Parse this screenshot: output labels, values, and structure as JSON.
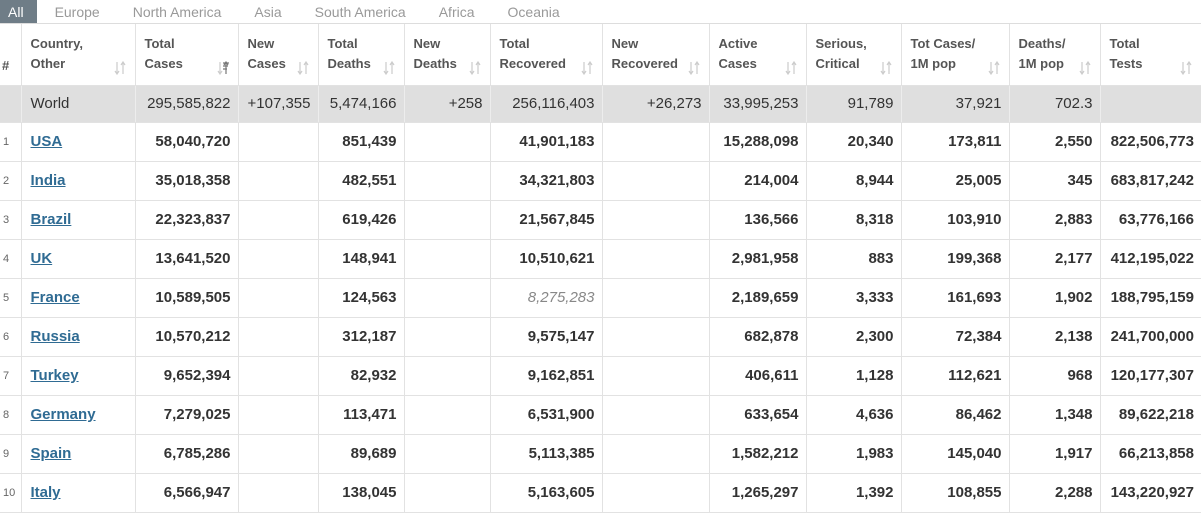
{
  "tabs": [
    "All",
    "Europe",
    "North America",
    "Asia",
    "South America",
    "Africa",
    "Oceania"
  ],
  "active_tab": 0,
  "headers": [
    [
      "#"
    ],
    [
      "Country,",
      "Other"
    ],
    [
      "Total",
      "Cases"
    ],
    [
      "New",
      "Cases"
    ],
    [
      "Total",
      "Deaths"
    ],
    [
      "New",
      "Deaths"
    ],
    [
      "Total",
      "Recovered"
    ],
    [
      "New",
      "Recovered"
    ],
    [
      "Active",
      "Cases"
    ],
    [
      "Serious,",
      "Critical"
    ],
    [
      "Tot Cases/",
      "1M pop"
    ],
    [
      "Deaths/",
      "1M pop"
    ],
    [
      "Total",
      "Tests"
    ]
  ],
  "sorted_column": 2,
  "world": {
    "name": "World",
    "cells": [
      "295,585,822",
      "+107,355",
      "5,474,166",
      "+258",
      "256,116,403",
      "+26,273",
      "33,995,253",
      "91,789",
      "37,921",
      "702.3",
      ""
    ]
  },
  "rows": [
    {
      "num": "1",
      "country": "USA",
      "cells": [
        "58,040,720",
        "",
        "851,439",
        "",
        "41,901,183",
        "",
        "15,288,098",
        "20,340",
        "173,811",
        "2,550",
        "822,506,773"
      ]
    },
    {
      "num": "2",
      "country": "India",
      "cells": [
        "35,018,358",
        "",
        "482,551",
        "",
        "34,321,803",
        "",
        "214,004",
        "8,944",
        "25,005",
        "345",
        "683,817,242"
      ]
    },
    {
      "num": "3",
      "country": "Brazil",
      "cells": [
        "22,323,837",
        "",
        "619,426",
        "",
        "21,567,845",
        "",
        "136,566",
        "8,318",
        "103,910",
        "2,883",
        "63,776,166"
      ]
    },
    {
      "num": "4",
      "country": "UK",
      "cells": [
        "13,641,520",
        "",
        "148,941",
        "",
        "10,510,621",
        "",
        "2,981,958",
        "883",
        "199,368",
        "2,177",
        "412,195,022"
      ]
    },
    {
      "num": "5",
      "country": "France",
      "cells": [
        "10,589,505",
        "",
        "124,563",
        "",
        "8,275,283",
        "",
        "2,189,659",
        "3,333",
        "161,693",
        "1,902",
        "188,795,159"
      ],
      "italic_cells": [
        4
      ]
    },
    {
      "num": "6",
      "country": "Russia",
      "cells": [
        "10,570,212",
        "",
        "312,187",
        "",
        "9,575,147",
        "",
        "682,878",
        "2,300",
        "72,384",
        "2,138",
        "241,700,000"
      ]
    },
    {
      "num": "7",
      "country": "Turkey",
      "cells": [
        "9,652,394",
        "",
        "82,932",
        "",
        "9,162,851",
        "",
        "406,611",
        "1,128",
        "112,621",
        "968",
        "120,177,307"
      ]
    },
    {
      "num": "8",
      "country": "Germany",
      "cells": [
        "7,279,025",
        "",
        "113,471",
        "",
        "6,531,900",
        "",
        "633,654",
        "4,636",
        "86,462",
        "1,348",
        "89,622,218"
      ]
    },
    {
      "num": "9",
      "country": "Spain",
      "cells": [
        "6,785,286",
        "",
        "89,689",
        "",
        "5,113,385",
        "",
        "1,582,212",
        "1,983",
        "145,040",
        "1,917",
        "66,213,858"
      ]
    },
    {
      "num": "10",
      "country": "Italy",
      "cells": [
        "6,566,947",
        "",
        "138,045",
        "",
        "5,163,605",
        "",
        "1,265,297",
        "1,392",
        "108,855",
        "2,288",
        "143,220,927"
      ]
    }
  ],
  "colors": {
    "active_tab_bg": "#6f7d87",
    "link": "#2f6b93",
    "world_row_bg": "#dfdfdf"
  }
}
